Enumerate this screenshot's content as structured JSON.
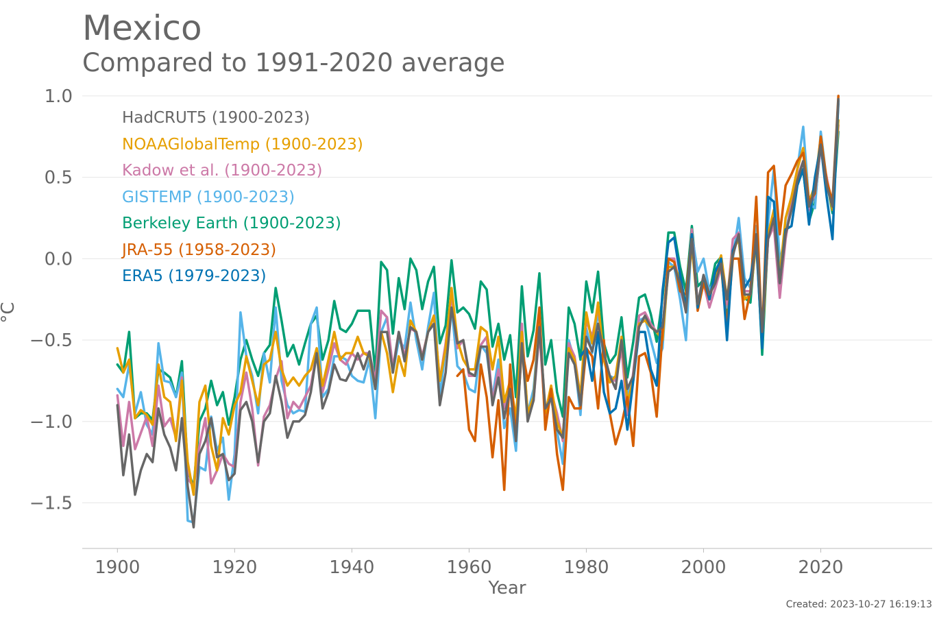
{
  "title": "Mexico",
  "subtitle": "Compared to 1991-2020 average",
  "created": "Created: 2023-10-27 16:19:13",
  "chart_data": {
    "type": "line",
    "title": "Mexico",
    "subtitle": "Compared to 1991-2020 average",
    "xlabel": "Year",
    "ylabel": "°C",
    "xlim": [
      1894,
      2039
    ],
    "ylim": [
      -1.78,
      1.05
    ],
    "xticks": [
      1900,
      1920,
      1940,
      1960,
      1980,
      2000,
      2020
    ],
    "xtick_labels": [
      "1900",
      "1920",
      "1940",
      "1960",
      "1980",
      "2000",
      "2020"
    ],
    "yticks": [
      1.0,
      0.5,
      0.0,
      -0.5,
      -1.0,
      -1.5
    ],
    "ytick_labels": [
      "1.0",
      "0.5",
      "0.0",
      "−0.5",
      "−1.0",
      "−1.5"
    ],
    "grid": "horizontal",
    "legend_position": "top-left",
    "series": [
      {
        "name": "Berkeley Earth (1900-2023)",
        "color": "#009E73",
        "start": 1900,
        "values": [
          -0.65,
          -0.7,
          -0.45,
          -0.98,
          -0.95,
          -0.95,
          -0.99,
          -0.68,
          -0.7,
          -0.73,
          -0.85,
          -0.63,
          -1.3,
          -1.4,
          -1,
          -0.92,
          -0.75,
          -0.9,
          -0.82,
          -1.02,
          -0.85,
          -0.62,
          -0.5,
          -0.62,
          -0.72,
          -0.58,
          -0.53,
          -0.18,
          -0.38,
          -0.6,
          -0.53,
          -0.65,
          -0.52,
          -0.4,
          -0.35,
          -0.62,
          -0.5,
          -0.26,
          -0.43,
          -0.45,
          -0.4,
          -0.32,
          -0.32,
          -0.32,
          -0.7,
          -0.02,
          -0.07,
          -0.46,
          -0.12,
          -0.31,
          0,
          -0.07,
          -0.31,
          -0.14,
          -0.05,
          -0.52,
          -0.41,
          -0.01,
          -0.33,
          -0.3,
          -0.34,
          -0.43,
          -0.14,
          -0.19,
          -0.54,
          -0.4,
          -0.62,
          -0.47,
          -0.85,
          -0.17,
          -0.6,
          -0.44,
          -0.09,
          -0.65,
          -0.5,
          -0.82,
          -0.97,
          -0.3,
          -0.4,
          -0.62,
          -0.14,
          -0.33,
          -0.08,
          -0.52,
          -0.64,
          -0.59,
          -0.36,
          -0.73,
          -0.51,
          -0.24,
          -0.22,
          -0.34,
          -0.51,
          -0.24,
          0.16,
          0.16,
          -0.05,
          -0.2,
          0.2,
          -0.17,
          -0.13,
          -0.21,
          -0.03,
          0.01,
          -0.37,
          0.04,
          0.14,
          -0.24,
          -0.27,
          0.16,
          -0.59,
          0.14,
          0.2,
          -0.12,
          0.15,
          0.31,
          0.47,
          0.54,
          0.23,
          0.35,
          0.7,
          0.48,
          0.28,
          0.78
        ]
      },
      {
        "name": "GISTEMP (1900-2023)",
        "color": "#56B4E9",
        "start": 1900,
        "values": [
          -0.8,
          -0.85,
          -0.65,
          -0.95,
          -0.82,
          -1.02,
          -1.08,
          -0.52,
          -0.75,
          -0.76,
          -0.85,
          -0.7,
          -1.61,
          -1.62,
          -1.28,
          -1.3,
          -0.97,
          -1.18,
          -1.1,
          -1.48,
          -1.2,
          -0.33,
          -0.6,
          -0.72,
          -0.95,
          -0.58,
          -0.76,
          -0.3,
          -0.75,
          -0.9,
          -0.95,
          -0.93,
          -0.94,
          -0.4,
          -0.3,
          -0.85,
          -0.8,
          -0.6,
          -0.6,
          -0.62,
          -0.72,
          -0.75,
          -0.76,
          -0.62,
          -0.98,
          -0.45,
          -0.36,
          -0.7,
          -0.5,
          -0.55,
          -0.27,
          -0.5,
          -0.68,
          -0.42,
          -0.21,
          -0.85,
          -0.55,
          -0.3,
          -0.66,
          -0.7,
          -0.8,
          -0.82,
          -0.53,
          -0.58,
          -0.85,
          -0.62,
          -1.04,
          -0.92,
          -1.18,
          -0.5,
          -0.95,
          -0.8,
          -0.4,
          -0.95,
          -0.82,
          -1.06,
          -1.26,
          -0.5,
          -0.63,
          -0.96,
          -0.43,
          -0.58,
          -0.32,
          -0.62,
          -0.72,
          -0.74,
          -0.5,
          -0.85,
          -0.72,
          -0.38,
          -0.36,
          -0.5,
          -0.64,
          -0.55,
          -0.02,
          -0.05,
          -0.25,
          -0.5,
          0.15,
          -0.08,
          0,
          -0.2,
          -0.12,
          0,
          -0.3,
          0,
          0.25,
          -0.12,
          -0.18,
          0.2,
          -0.48,
          0.22,
          0.55,
          -0.02,
          0.15,
          0.35,
          0.55,
          0.81,
          0.34,
          0.31,
          0.78,
          0.48,
          0.33,
          0.95
        ]
      },
      {
        "name": "Kadow et al. (1900-2023)",
        "color": "#CC79A7",
        "start": 1900,
        "values": [
          -0.84,
          -1.15,
          -0.88,
          -1.17,
          -1.07,
          -0.97,
          -1.15,
          -0.78,
          -1.03,
          -0.98,
          -1.1,
          -0.73,
          -1.35,
          -1.4,
          -1.15,
          -0.98,
          -1.38,
          -1.3,
          -1.2,
          -1.26,
          -1.28,
          -0.88,
          -0.7,
          -0.92,
          -1.27,
          -0.97,
          -0.9,
          -0.74,
          -0.63,
          -0.98,
          -0.88,
          -0.92,
          -0.85,
          -0.78,
          -0.58,
          -0.82,
          -0.68,
          -0.52,
          -0.62,
          -0.65,
          -0.58,
          -0.62,
          -0.58,
          -0.58,
          -0.75,
          -0.32,
          -0.36,
          -0.67,
          -0.45,
          -0.6,
          -0.43,
          -0.45,
          -0.6,
          -0.45,
          -0.35,
          -0.75,
          -0.52,
          -0.22,
          -0.55,
          -0.5,
          -0.72,
          -0.72,
          -0.53,
          -0.48,
          -0.88,
          -0.68,
          -0.92,
          -0.78,
          -1.05,
          -0.4,
          -0.98,
          -0.87,
          -0.45,
          -0.98,
          -0.82,
          -0.95,
          -1.12,
          -0.52,
          -0.6,
          -0.85,
          -0.38,
          -0.48,
          -0.3,
          -0.6,
          -0.74,
          -0.75,
          -0.55,
          -0.96,
          -0.7,
          -0.35,
          -0.33,
          -0.4,
          -0.45,
          -0.45,
          0,
          0,
          -0.18,
          -0.32,
          0.18,
          -0.28,
          -0.15,
          -0.3,
          -0.18,
          -0.05,
          -0.28,
          0.12,
          0.16,
          -0.2,
          -0.2,
          0.15,
          -0.48,
          0.12,
          0.2,
          -0.24,
          0.12,
          0.35,
          0.5,
          0.6,
          0.3,
          0.4,
          0.68,
          0.5,
          0.32,
          0.82
        ]
      },
      {
        "name": "NOAAGlobalTemp (1900-2023)",
        "color": "#E69F00",
        "start": 1900,
        "values": [
          -0.55,
          -0.7,
          -0.62,
          -0.98,
          -0.93,
          -0.96,
          -1.02,
          -0.65,
          -0.85,
          -0.88,
          -1.12,
          -0.75,
          -1.25,
          -1.45,
          -0.88,
          -0.78,
          -1.15,
          -1.3,
          -0.98,
          -1.08,
          -0.9,
          -0.82,
          -0.6,
          -0.75,
          -0.9,
          -0.65,
          -0.62,
          -0.45,
          -0.68,
          -0.78,
          -0.73,
          -0.78,
          -0.72,
          -0.68,
          -0.55,
          -0.78,
          -0.62,
          -0.45,
          -0.62,
          -0.58,
          -0.58,
          -0.48,
          -0.58,
          -0.6,
          -0.8,
          -0.45,
          -0.58,
          -0.82,
          -0.6,
          -0.72,
          -0.38,
          -0.45,
          -0.62,
          -0.45,
          -0.35,
          -0.75,
          -0.55,
          -0.18,
          -0.5,
          -0.62,
          -0.68,
          -0.68,
          -0.42,
          -0.45,
          -0.68,
          -0.48,
          -0.88,
          -0.75,
          -0.98,
          -0.45,
          -0.95,
          -0.85,
          -0.4,
          -0.95,
          -0.78,
          -1.0,
          -1.1,
          -0.55,
          -0.62,
          -0.85,
          -0.33,
          -0.52,
          -0.27,
          -0.62,
          -0.76,
          -0.72,
          -0.48,
          -0.88,
          -0.75,
          -0.4,
          -0.38,
          -0.42,
          -0.45,
          -0.5,
          -0.05,
          -0.05,
          -0.12,
          -0.28,
          0.08,
          -0.3,
          -0.15,
          -0.25,
          -0.1,
          0.02,
          -0.25,
          0.05,
          0.12,
          -0.25,
          -0.22,
          0.1,
          -0.52,
          0.15,
          0.3,
          -0.1,
          0.25,
          0.38,
          0.55,
          0.68,
          0.35,
          0.45,
          0.75,
          0.48,
          0.3,
          0.85
        ]
      },
      {
        "name": "JRA-55 (1958-2023)",
        "color": "#D55E00",
        "start": 1958,
        "values": [
          -0.72,
          -0.68,
          -1.05,
          -1.12,
          -0.65,
          -0.85,
          -1.22,
          -0.87,
          -1.42,
          -0.65,
          -1.1,
          -0.55,
          -0.75,
          -0.62,
          -0.3,
          -1.05,
          -0.8,
          -1.2,
          -1.42,
          -0.85,
          -0.92,
          -0.92,
          -0.55,
          -0.6,
          -0.92,
          -0.5,
          -0.95,
          -1.14,
          -1.02,
          -0.85,
          -1.15,
          -0.6,
          -0.58,
          -0.7,
          -0.97,
          -0.45,
          0,
          -0.02,
          -0.2,
          -0.22,
          0.15,
          -0.32,
          -0.15,
          -0.25,
          -0.08,
          -0.05,
          -0.42,
          0,
          0,
          -0.37,
          -0.2,
          0.38,
          -0.5,
          0.53,
          0.57,
          0.15,
          0.45,
          0.52,
          0.6,
          0.65,
          0.35,
          0.4,
          0.75,
          0.48,
          0.35,
          1.0
        ]
      },
      {
        "name": "ERA5 (1979-2023)",
        "color": "#0072B2",
        "start": 1979,
        "values": [
          -0.6,
          -0.55,
          -0.75,
          -0.45,
          -0.82,
          -0.95,
          -0.92,
          -0.75,
          -1.05,
          -0.75,
          -0.45,
          -0.45,
          -0.68,
          -0.78,
          -0.2,
          0.1,
          0.13,
          -0.1,
          -0.3,
          0.15,
          -0.3,
          -0.1,
          -0.25,
          -0.08,
          0,
          -0.5,
          0.05,
          0.14,
          -0.18,
          -0.12,
          0.1,
          -0.55,
          0.38,
          0.35,
          -0.15,
          0.18,
          0.2,
          0.45,
          0.55,
          0.21,
          0.5,
          0.7,
          0.38,
          0.12,
          0.97
        ]
      },
      {
        "name": "HadCRUT5 (1900-2023)",
        "color": "#666666",
        "start": 1900,
        "values": [
          -0.9,
          -1.33,
          -1.08,
          -1.45,
          -1.3,
          -1.2,
          -1.25,
          -0.92,
          -1.08,
          -1.16,
          -1.3,
          -0.98,
          -1.4,
          -1.65,
          -1.2,
          -1.12,
          -0.98,
          -1.22,
          -1.2,
          -1.36,
          -1.32,
          -0.93,
          -0.88,
          -1.0,
          -1.25,
          -1.0,
          -0.95,
          -0.72,
          -0.88,
          -1.1,
          -1.0,
          -1.0,
          -0.96,
          -0.82,
          -0.58,
          -0.92,
          -0.82,
          -0.65,
          -0.74,
          -0.75,
          -0.68,
          -0.58,
          -0.68,
          -0.57,
          -0.8,
          -0.45,
          -0.45,
          -0.7,
          -0.45,
          -0.63,
          -0.42,
          -0.45,
          -0.62,
          -0.45,
          -0.4,
          -0.9,
          -0.7,
          -0.3,
          -0.52,
          -0.5,
          -0.7,
          -0.72,
          -0.54,
          -0.54,
          -0.9,
          -0.73,
          -0.98,
          -0.8,
          -1.12,
          -0.52,
          -1.0,
          -0.87,
          -0.42,
          -0.92,
          -0.86,
          -1.05,
          -1.1,
          -0.58,
          -0.65,
          -0.9,
          -0.48,
          -0.57,
          -0.4,
          -0.58,
          -0.72,
          -0.8,
          -0.5,
          -0.8,
          -0.72,
          -0.42,
          -0.35,
          -0.42,
          -0.45,
          -0.42,
          -0.08,
          -0.05,
          -0.15,
          -0.33,
          0.12,
          -0.28,
          -0.1,
          -0.22,
          -0.15,
          -0.03,
          -0.25,
          0.02,
          0.15,
          -0.22,
          -0.22,
          0.15,
          -0.45,
          0.12,
          0.25,
          -0.15,
          0.15,
          0.3,
          0.48,
          0.6,
          0.32,
          0.42,
          0.7,
          0.45,
          0.32,
          0.98
        ]
      }
    ],
    "legend_order": [
      6,
      3,
      2,
      1,
      0,
      4,
      5
    ]
  }
}
